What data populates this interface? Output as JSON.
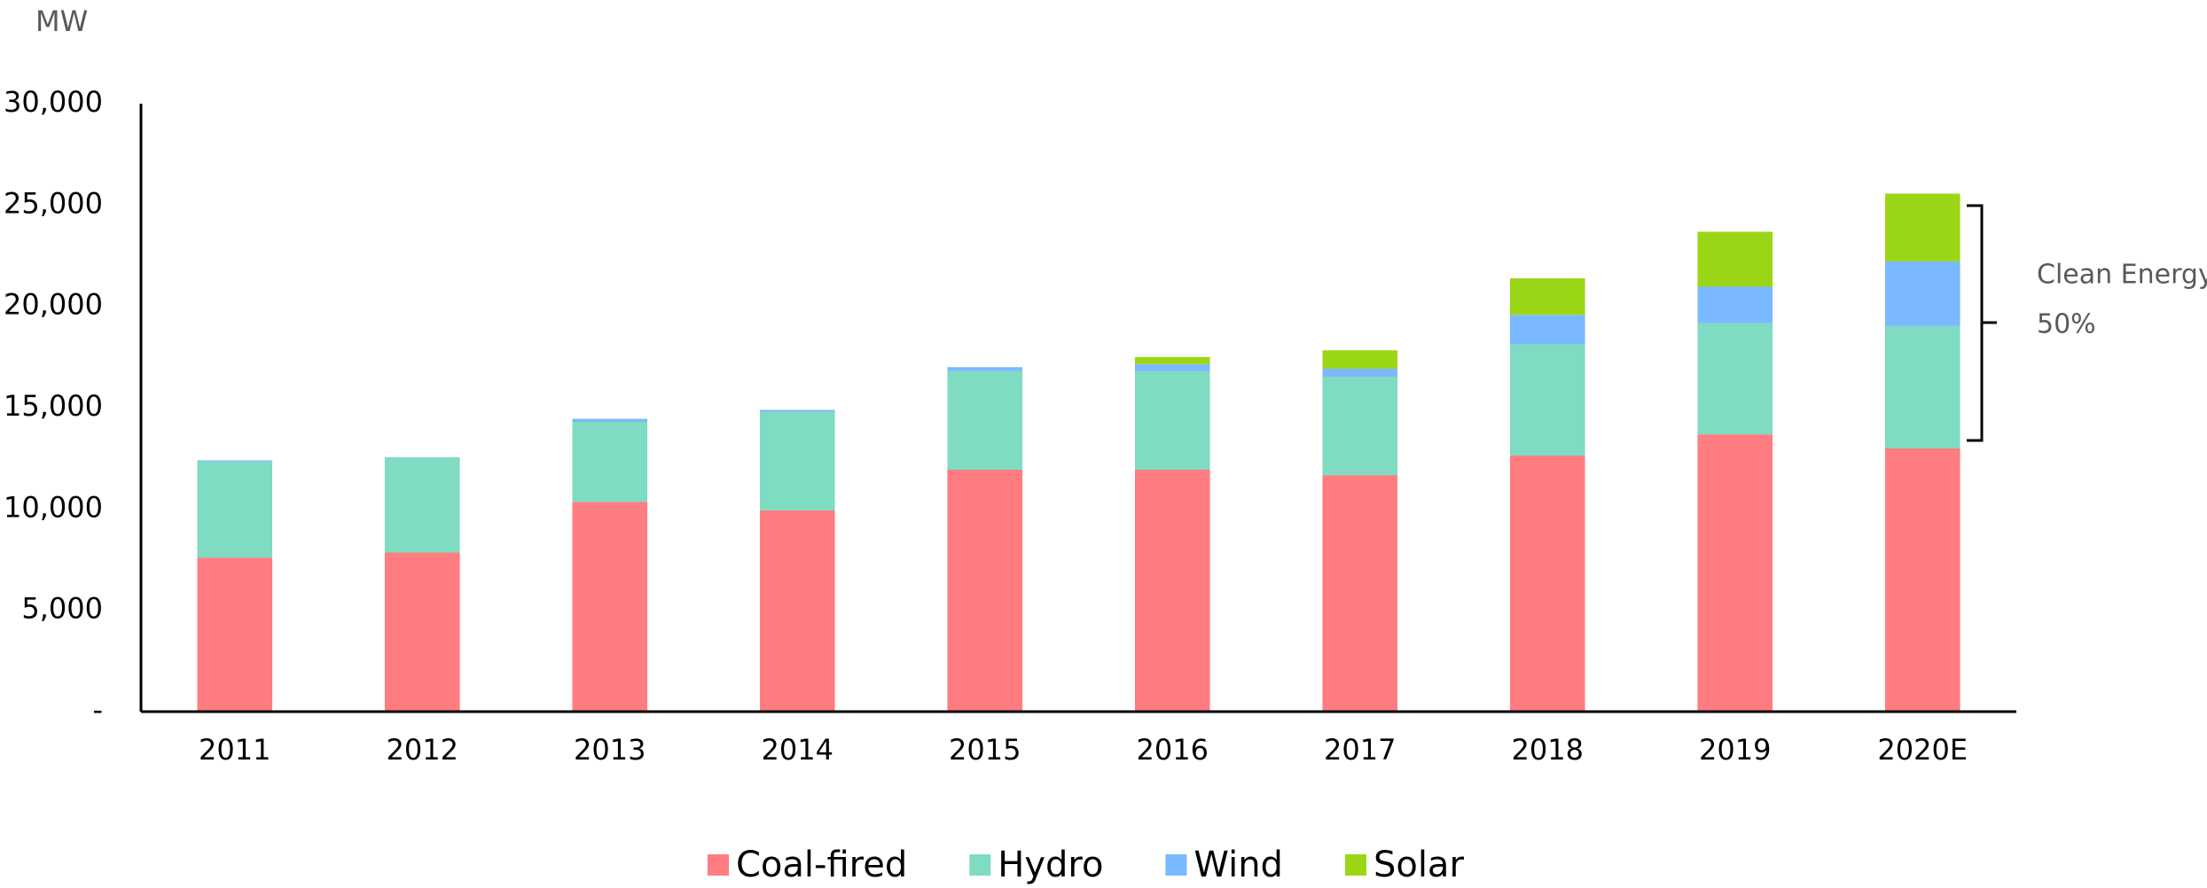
{
  "chart_data": {
    "type": "stacked_bar",
    "y_axis_label": "MW",
    "categories": [
      "2011",
      "2012",
      "2013",
      "2014",
      "2015",
      "2016",
      "2017",
      "2018",
      "2019",
      "2020E"
    ],
    "series": [
      {
        "name": "Coal-fired",
        "color": "#ff7c80",
        "values": [
          7600,
          7850,
          10350,
          9930,
          11940,
          11940,
          11670,
          12640,
          13680,
          12990
        ]
      },
      {
        "name": "Hydro",
        "color": "#7fdbc1",
        "values": [
          4750,
          4700,
          3950,
          4860,
          4860,
          4860,
          4860,
          5480,
          5490,
          6040
        ]
      },
      {
        "name": "Wind",
        "color": "#7ab8ff",
        "values": [
          50,
          0,
          150,
          100,
          200,
          350,
          400,
          1460,
          1800,
          3190
        ]
      },
      {
        "name": "Solar",
        "color": "#9bd616",
        "values": [
          0,
          0,
          0,
          0,
          0,
          350,
          900,
          1800,
          2710,
          3340
        ]
      }
    ],
    "ylim": [
      0,
      30000
    ],
    "yticks": [
      {
        "value": 0,
        "label": "-"
      },
      {
        "value": 5000,
        "label": "5,000"
      },
      {
        "value": 10000,
        "label": "10,000"
      },
      {
        "value": 15000,
        "label": "15,000"
      },
      {
        "value": 20000,
        "label": "20,000"
      },
      {
        "value": 25000,
        "label": "25,000"
      },
      {
        "value": 30000,
        "label": "30,000"
      }
    ],
    "annotation": {
      "text": "Clean Energy",
      "value_text": "50%"
    },
    "legend": "bottom"
  }
}
